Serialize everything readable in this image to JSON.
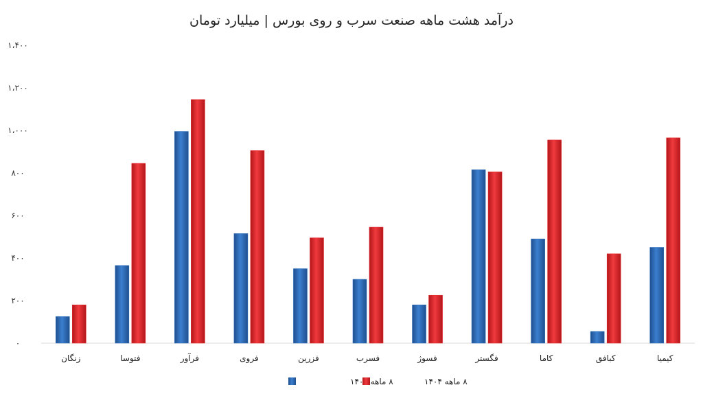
{
  "chart_data": {
    "type": "bar",
    "title": "درآمد هشت ماهه صنعت سرب و روی بورس | میلیارد تومان",
    "xlabel": "",
    "ylabel": "",
    "ylim": [
      0,
      1400
    ],
    "y_ticks": [
      0,
      200,
      400,
      600,
      800,
      1000,
      1200,
      1400
    ],
    "y_tick_labels": [
      "۰",
      "۲۰۰",
      "۴۰۰",
      "۶۰۰",
      "۸۰۰",
      "۱،۰۰۰",
      "۱،۲۰۰",
      "۱،۴۰۰"
    ],
    "grid": false,
    "legend_position": "bottom",
    "categories": [
      "زنگان",
      "فتوسا",
      "فرآور",
      "فروی",
      "فزرین",
      "فسرب",
      "فسوژ",
      "فگستر",
      "کاما",
      "کبافق",
      "کیمیا"
    ],
    "series": [
      {
        "name": "۸ ماهه ۱۴۰۳",
        "color": "#2f6fba",
        "values": [
          125,
          365,
          995,
          515,
          350,
          300,
          180,
          815,
          490,
          55,
          450
        ]
      },
      {
        "name": "۸ ماهه ۱۴۰۴",
        "color": "#e32a2e",
        "values": [
          180,
          845,
          1145,
          905,
          495,
          545,
          225,
          805,
          955,
          420,
          965
        ]
      }
    ]
  }
}
